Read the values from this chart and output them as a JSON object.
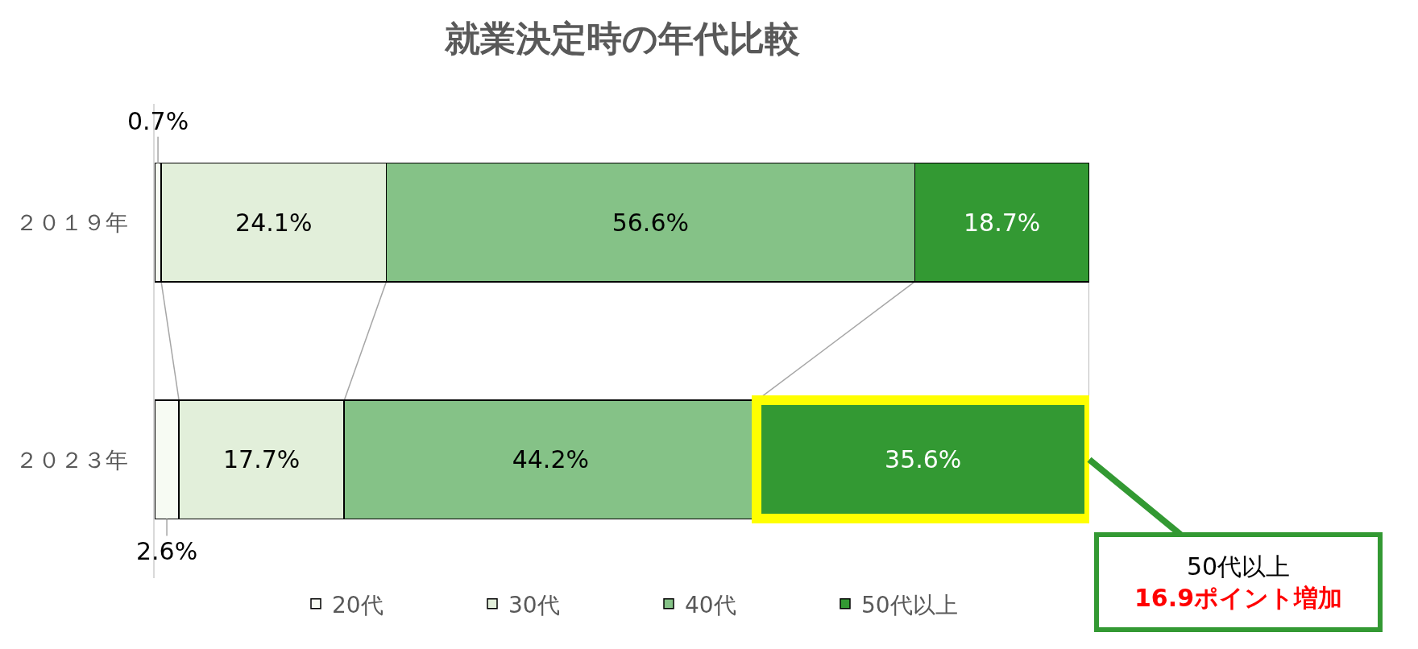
{
  "chart_data": {
    "type": "bar",
    "orientation": "horizontal",
    "stacked": true,
    "title": "就業決定時の年代比較",
    "categories": [
      "２０１９年",
      "２０２３年"
    ],
    "series": [
      {
        "name": "20代",
        "color": "#f7fbf3",
        "values": [
          0.7,
          2.6
        ],
        "value_labels": [
          "0.7%",
          "2.6%"
        ]
      },
      {
        "name": "30代",
        "color": "#e2efda",
        "values": [
          24.1,
          17.7
        ],
        "value_labels": [
          "24.1%",
          "17.7%"
        ]
      },
      {
        "name": "40代",
        "color": "#85c287",
        "values": [
          56.6,
          44.2
        ],
        "value_labels": [
          "56.6%",
          "44.2%"
        ]
      },
      {
        "name": "50代以上",
        "color": "#339933",
        "values": [
          18.7,
          35.6
        ],
        "value_labels": [
          "18.7%",
          "35.6%"
        ]
      }
    ],
    "legend": "bottom",
    "tick_labels": "y",
    "annotations": [
      {
        "text": "50代以上\n16.9ポイント増加",
        "x": 100.1,
        "y": "２０２３年"
      }
    ]
  }
}
